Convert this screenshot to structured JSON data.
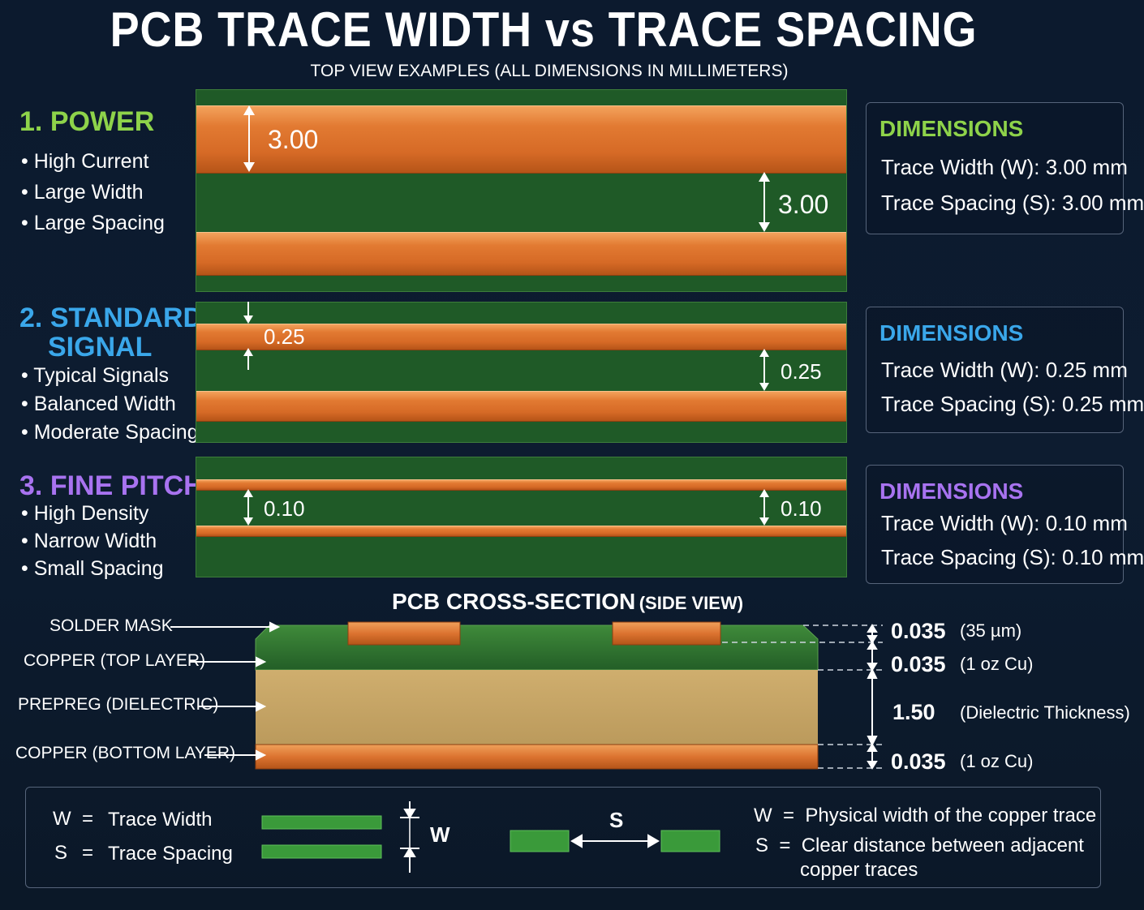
{
  "title": "PCB TRACE WIDTH vs TRACE SPACING",
  "subtitle": "TOP VIEW EXAMPLES  (ALL DIMENSIONS IN MILLIMETERS)",
  "colors": {
    "power": "#8ed34a",
    "signal": "#3aa7ea",
    "fine": "#a873f0",
    "copper": "#dc7330",
    "mask": "#1f5a27",
    "prepreg": "#c8a86a",
    "background": "#0d1a2c"
  },
  "sections": [
    {
      "title_num": "1.",
      "title": "POWER",
      "title2": "",
      "bullets": [
        "High Current",
        "Large Width",
        "Large Spacing"
      ],
      "width_label": "3.00",
      "spacing_label": "3.00",
      "dims": {
        "header": "DIMENSIONS",
        "width_row": "Trace Width  (W):  3.00 mm",
        "spacing_row": "Trace Spacing (S):  3.00 mm"
      }
    },
    {
      "title_num": "2.",
      "title": "STANDARD",
      "title2": "SIGNAL",
      "bullets": [
        "Typical Signals",
        "Balanced Width",
        "Moderate Spacing"
      ],
      "width_label": "0.25",
      "spacing_label": "0.25",
      "dims": {
        "header": "DIMENSIONS",
        "width_row": "Trace Width  (W):  0.25 mm",
        "spacing_row": "Trace Spacing (S):  0.25 mm"
      }
    },
    {
      "title_num": "3.",
      "title": "FINE PITCH",
      "title2": "",
      "bullets": [
        "High Density",
        "Narrow Width",
        "Small Spacing"
      ],
      "width_label": "0.10",
      "spacing_label": "0.10",
      "dims": {
        "header": "DIMENSIONS",
        "width_row": "Trace Width  (W):  0.10 mm",
        "spacing_row": "Trace Spacing (S):  0.10 mm"
      }
    }
  ],
  "cross_section": {
    "title": "PCB CROSS-SECTION",
    "title_suffix": "(SIDE VIEW)",
    "layers": [
      "SOLDER MASK",
      "COPPER (TOP LAYER)",
      "PREPREG (DIELECTRIC)",
      "COPPER (BOTTOM LAYER)"
    ],
    "measurements": [
      {
        "value": "0.035",
        "note": "(35 µm)"
      },
      {
        "value": "0.035",
        "note": "(1 oz Cu)"
      },
      {
        "value": "1.50",
        "note": "(Dielectric Thickness)"
      },
      {
        "value": "0.035",
        "note": "(1 oz Cu)"
      }
    ]
  },
  "legend": {
    "w_key": "W",
    "w_eq": "=",
    "w_text": "Trace Width",
    "s_key": "S",
    "s_eq": "=",
    "s_text": "Trace Spacing",
    "w_symbol": "W",
    "s_symbol": "S",
    "w_def": "Physical width of the copper trace",
    "s_def_1": "Clear distance between adjacent",
    "s_def_2": "copper traces"
  }
}
